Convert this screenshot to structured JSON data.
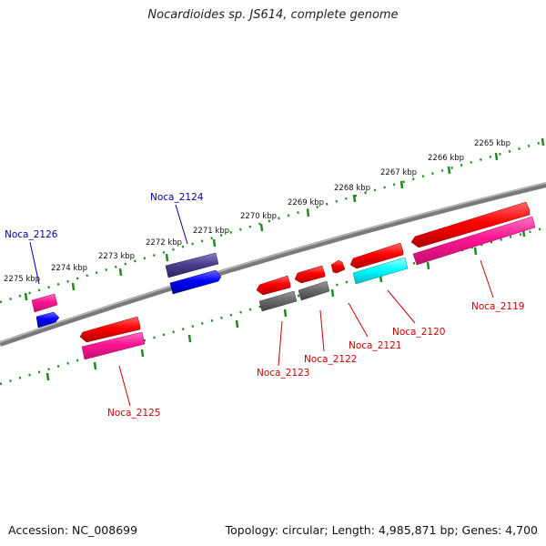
{
  "header": {
    "title": "Nocardioides sp. JS614, complete genome"
  },
  "footer": {
    "accession": "Accession: NC_008699",
    "summary": "Topology: circular; Length: 4,985,871 bp; Genes: 4,700"
  },
  "scale": {
    "unit": "kbp",
    "ticks": [
      {
        "label": "2265 kbp"
      },
      {
        "label": "2266 kbp"
      },
      {
        "label": "2267 kbp"
      },
      {
        "label": "2268 kbp"
      },
      {
        "label": "2269 kbp"
      },
      {
        "label": "2270 kbp"
      },
      {
        "label": "2271 kbp"
      },
      {
        "label": "2272 kbp"
      },
      {
        "label": "2273 kbp"
      },
      {
        "label": "2274 kbp"
      },
      {
        "label": "2275 kbp"
      }
    ]
  },
  "genes": [
    {
      "label": "Noca_2119",
      "color": "#cc0000"
    },
    {
      "label": "Noca_2120",
      "color": "#cc0000"
    },
    {
      "label": "Noca_2121",
      "color": "#cc0000"
    },
    {
      "label": "Noca_2122",
      "color": "#cc0000"
    },
    {
      "label": "Noca_2123",
      "color": "#cc0000"
    },
    {
      "label": "Noca_2124",
      "color": "#0000aa"
    },
    {
      "label": "Noca_2125",
      "color": "#cc0000"
    },
    {
      "label": "Noca_2126",
      "color": "#0000aa"
    }
  ],
  "colors": {
    "backbone": "#808080",
    "scale_dots": "#1f8a1f",
    "cds_red": "#ff0000",
    "cds_pink": "#ff1493",
    "cds_gray": "#6b6b6b",
    "cds_cyan": "#00ffff",
    "cds_blue": "#0000ff",
    "cds_slate": "#4b3f8f"
  }
}
